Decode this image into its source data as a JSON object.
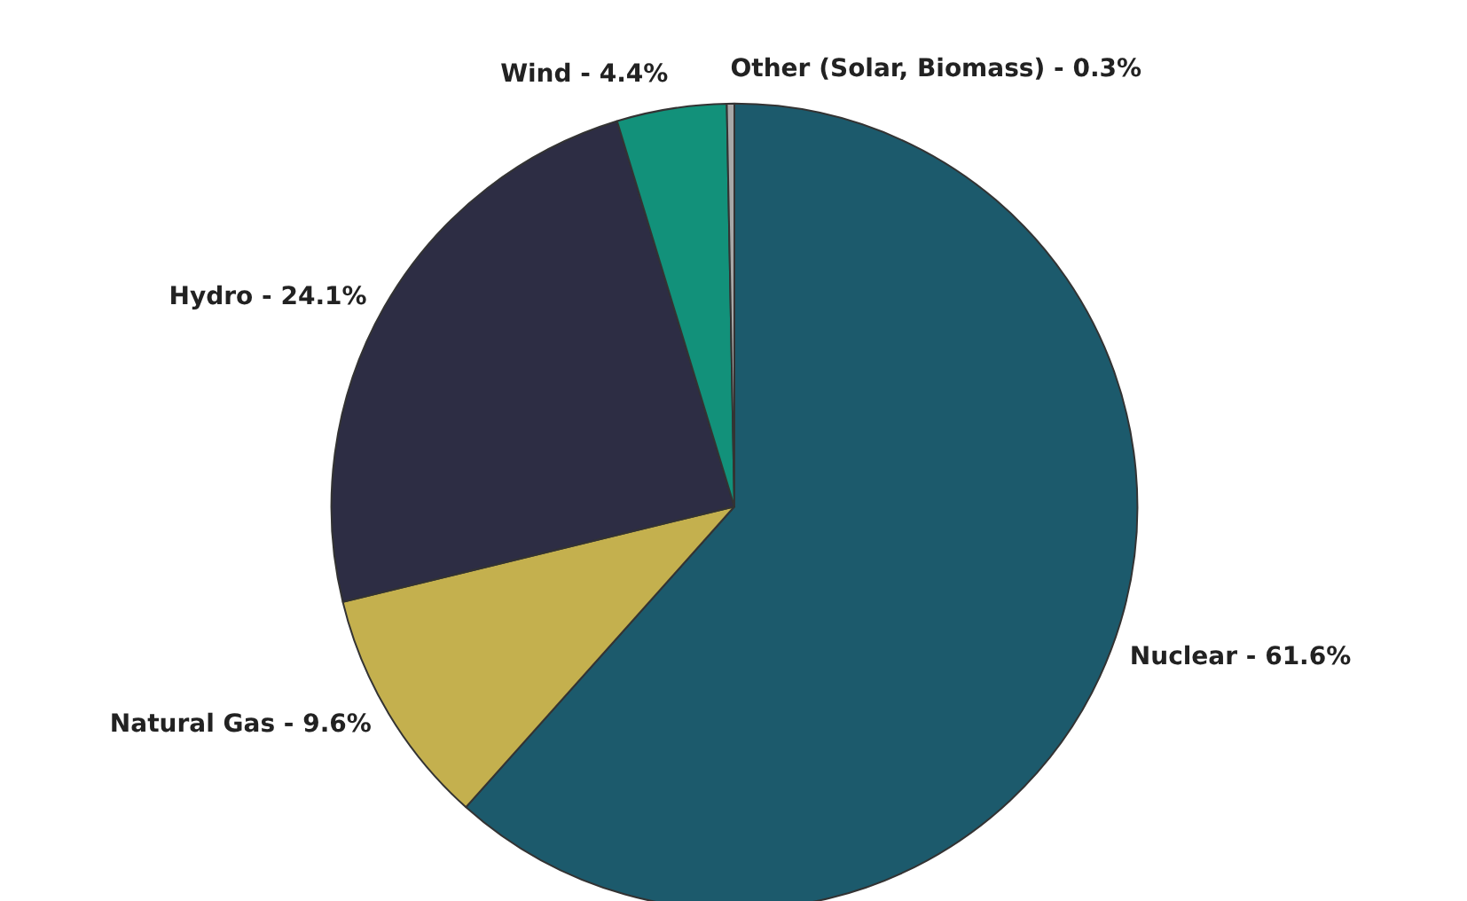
{
  "chart_data": {
    "type": "pie",
    "categories": [
      "Nuclear - 61.6%",
      "Natural Gas - 9.6%",
      "Hydro - 24.1%",
      "Wind - 4.4%",
      "Other (Solar, Biomass) - 0.3%"
    ],
    "values": [
      61.6,
      9.6,
      24.1,
      4.4,
      0.3
    ],
    "colors": [
      "#1c5a6c",
      "#c4b04e",
      "#2d2d44",
      "#12917a",
      "#a8a8a8"
    ]
  }
}
